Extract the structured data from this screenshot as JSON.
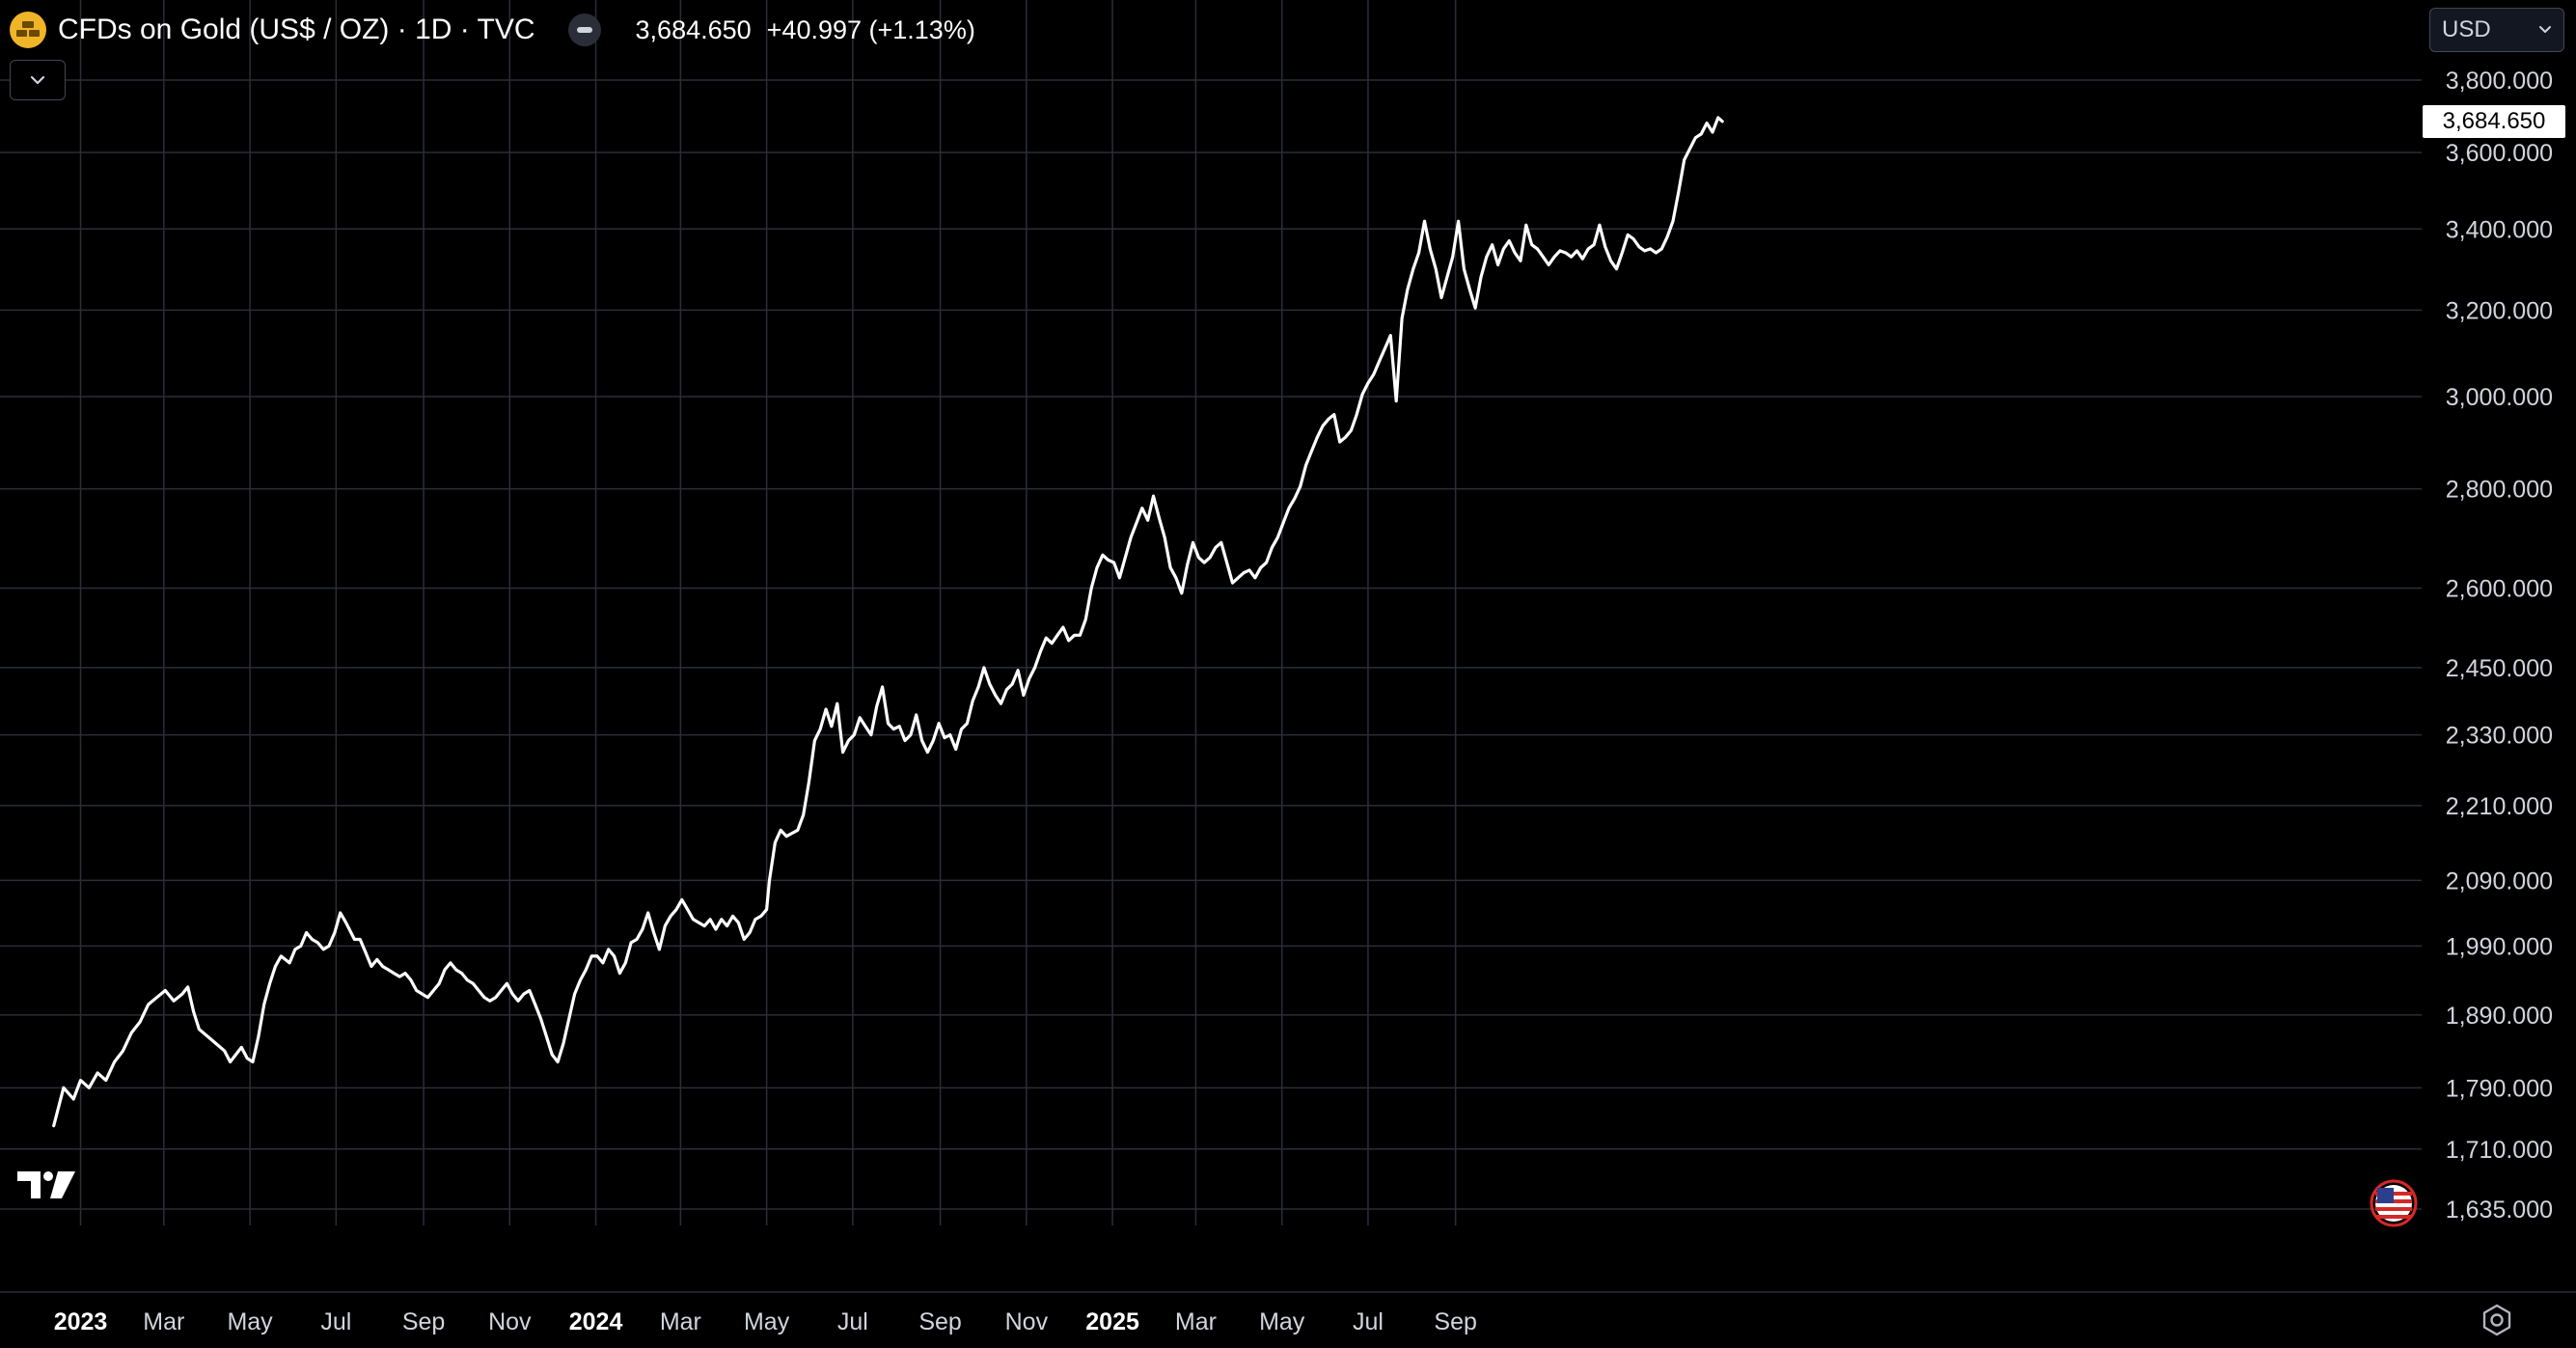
{
  "header": {
    "title": "CFDs on Gold (US$ / OZ) · 1D · TVC",
    "last_price": "3,684.650",
    "change": "+40.997 (+1.13%)",
    "logo_icon": "gold-bars-icon"
  },
  "currency": {
    "label": "USD"
  },
  "price_tag": "3,684.650",
  "colors": {
    "background": "#000000",
    "line": "#ffffff",
    "grid": "#2a2e39",
    "text": "#d1d4dc",
    "logo": "#f0b429"
  },
  "chart_data": {
    "type": "line",
    "series": [
      {
        "values": [
          [
            -19,
            1740
          ],
          [
            -12,
            1790
          ],
          [
            -5,
            1775
          ],
          [
            0,
            1800
          ],
          [
            6,
            1790
          ],
          [
            12,
            1810
          ],
          [
            18,
            1800
          ],
          [
            24,
            1825
          ],
          [
            30,
            1840
          ],
          [
            36,
            1865
          ],
          [
            42,
            1880
          ],
          [
            48,
            1905
          ],
          [
            54,
            1915
          ],
          [
            60,
            1925
          ],
          [
            66,
            1910
          ],
          [
            72,
            1920
          ],
          [
            76,
            1930
          ],
          [
            80,
            1895
          ],
          [
            84,
            1870
          ],
          [
            90,
            1860
          ],
          [
            96,
            1850
          ],
          [
            102,
            1840
          ],
          [
            106,
            1825
          ],
          [
            110,
            1835
          ],
          [
            114,
            1845
          ],
          [
            118,
            1830
          ],
          [
            122,
            1825
          ],
          [
            126,
            1860
          ],
          [
            130,
            1905
          ],
          [
            134,
            1935
          ],
          [
            138,
            1960
          ],
          [
            142,
            1975
          ],
          [
            148,
            1965
          ],
          [
            152,
            1985
          ],
          [
            156,
            1990
          ],
          [
            160,
            2010
          ],
          [
            164,
            2000
          ],
          [
            168,
            1995
          ],
          [
            172,
            1985
          ],
          [
            176,
            1990
          ],
          [
            180,
            2010
          ],
          [
            184,
            2040
          ],
          [
            188,
            2025
          ],
          [
            194,
            2000
          ],
          [
            198,
            2000
          ],
          [
            202,
            1980
          ],
          [
            206,
            1960
          ],
          [
            210,
            1970
          ],
          [
            214,
            1960
          ],
          [
            218,
            1955
          ],
          [
            222,
            1950
          ],
          [
            226,
            1945
          ],
          [
            230,
            1950
          ],
          [
            234,
            1940
          ],
          [
            238,
            1925
          ],
          [
            242,
            1920
          ],
          [
            246,
            1915
          ],
          [
            250,
            1925
          ],
          [
            254,
            1935
          ],
          [
            258,
            1955
          ],
          [
            262,
            1965
          ],
          [
            266,
            1955
          ],
          [
            270,
            1950
          ],
          [
            274,
            1940
          ],
          [
            278,
            1935
          ],
          [
            282,
            1925
          ],
          [
            286,
            1915
          ],
          [
            290,
            1910
          ],
          [
            294,
            1915
          ],
          [
            298,
            1925
          ],
          [
            302,
            1935
          ],
          [
            306,
            1920
          ],
          [
            310,
            1910
          ],
          [
            314,
            1920
          ],
          [
            318,
            1925
          ],
          [
            322,
            1905
          ],
          [
            326,
            1885
          ],
          [
            330,
            1860
          ],
          [
            334,
            1835
          ],
          [
            338,
            1825
          ],
          [
            342,
            1850
          ],
          [
            346,
            1885
          ],
          [
            350,
            1920
          ],
          [
            354,
            1940
          ],
          [
            358,
            1955
          ],
          [
            362,
            1975
          ],
          [
            366,
            1975
          ],
          [
            370,
            1965
          ],
          [
            374,
            1985
          ],
          [
            378,
            1975
          ],
          [
            382,
            1950
          ],
          [
            386,
            1965
          ],
          [
            390,
            1995
          ],
          [
            394,
            2000
          ],
          [
            398,
            2015
          ],
          [
            402,
            2040
          ],
          [
            406,
            2010
          ],
          [
            410,
            1985
          ],
          [
            414,
            2020
          ],
          [
            418,
            2035
          ],
          [
            422,
            2045
          ],
          [
            426,
            2060
          ],
          [
            430,
            2045
          ],
          [
            434,
            2030
          ],
          [
            438,
            2025
          ],
          [
            442,
            2020
          ],
          [
            446,
            2030
          ],
          [
            450,
            2015
          ],
          [
            454,
            2030
          ],
          [
            458,
            2020
          ],
          [
            462,
            2035
          ],
          [
            466,
            2025
          ],
          [
            470,
            2000
          ],
          [
            474,
            2010
          ],
          [
            478,
            2030
          ],
          [
            482,
            2035
          ],
          [
            486,
            2045
          ],
          [
            488,
            2090
          ],
          [
            492,
            2150
          ],
          [
            496,
            2170
          ],
          [
            500,
            2160
          ],
          [
            504,
            2165
          ],
          [
            508,
            2170
          ],
          [
            512,
            2195
          ],
          [
            516,
            2250
          ],
          [
            520,
            2320
          ],
          [
            524,
            2340
          ],
          [
            528,
            2375
          ],
          [
            532,
            2345
          ],
          [
            536,
            2385
          ],
          [
            540,
            2300
          ],
          [
            544,
            2320
          ],
          [
            548,
            2330
          ],
          [
            552,
            2360
          ],
          [
            556,
            2345
          ],
          [
            560,
            2330
          ],
          [
            564,
            2380
          ],
          [
            568,
            2415
          ],
          [
            572,
            2350
          ],
          [
            576,
            2340
          ],
          [
            580,
            2345
          ],
          [
            584,
            2320
          ],
          [
            588,
            2330
          ],
          [
            592,
            2365
          ],
          [
            596,
            2320
          ],
          [
            600,
            2300
          ],
          [
            604,
            2320
          ],
          [
            608,
            2350
          ],
          [
            612,
            2325
          ],
          [
            616,
            2330
          ],
          [
            620,
            2305
          ],
          [
            624,
            2340
          ],
          [
            628,
            2350
          ],
          [
            632,
            2390
          ],
          [
            636,
            2415
          ],
          [
            640,
            2450
          ],
          [
            644,
            2420
          ],
          [
            648,
            2400
          ],
          [
            652,
            2385
          ],
          [
            656,
            2410
          ],
          [
            660,
            2420
          ],
          [
            664,
            2445
          ],
          [
            668,
            2400
          ],
          [
            672,
            2430
          ],
          [
            676,
            2450
          ],
          [
            680,
            2480
          ],
          [
            684,
            2505
          ],
          [
            688,
            2495
          ],
          [
            692,
            2510
          ],
          [
            696,
            2525
          ],
          [
            700,
            2500
          ],
          [
            704,
            2510
          ],
          [
            708,
            2510
          ],
          [
            712,
            2540
          ],
          [
            716,
            2600
          ],
          [
            720,
            2640
          ],
          [
            724,
            2665
          ],
          [
            728,
            2655
          ],
          [
            732,
            2650
          ],
          [
            736,
            2620
          ],
          [
            740,
            2660
          ],
          [
            744,
            2700
          ],
          [
            748,
            2730
          ],
          [
            752,
            2760
          ],
          [
            756,
            2735
          ],
          [
            760,
            2785
          ],
          [
            764,
            2740
          ],
          [
            768,
            2700
          ],
          [
            772,
            2640
          ],
          [
            776,
            2620
          ],
          [
            780,
            2590
          ],
          [
            784,
            2645
          ],
          [
            788,
            2690
          ],
          [
            792,
            2660
          ],
          [
            796,
            2650
          ],
          [
            800,
            2660
          ],
          [
            804,
            2680
          ],
          [
            808,
            2690
          ],
          [
            812,
            2650
          ],
          [
            816,
            2610
          ],
          [
            820,
            2620
          ],
          [
            824,
            2630
          ],
          [
            828,
            2635
          ],
          [
            832,
            2620
          ],
          [
            836,
            2640
          ],
          [
            840,
            2650
          ],
          [
            844,
            2680
          ],
          [
            848,
            2700
          ],
          [
            852,
            2730
          ],
          [
            856,
            2760
          ],
          [
            860,
            2780
          ],
          [
            864,
            2805
          ],
          [
            868,
            2850
          ],
          [
            872,
            2880
          ],
          [
            876,
            2910
          ],
          [
            880,
            2935
          ],
          [
            884,
            2950
          ],
          [
            888,
            2960
          ],
          [
            892,
            2900
          ],
          [
            896,
            2910
          ],
          [
            900,
            2925
          ],
          [
            904,
            2960
          ],
          [
            908,
            3005
          ],
          [
            912,
            3030
          ],
          [
            916,
            3050
          ],
          [
            920,
            3080
          ],
          [
            924,
            3110
          ],
          [
            928,
            3140
          ],
          [
            932,
            2990
          ],
          [
            936,
            3180
          ],
          [
            940,
            3250
          ],
          [
            944,
            3300
          ],
          [
            948,
            3340
          ],
          [
            952,
            3420
          ],
          [
            956,
            3350
          ],
          [
            960,
            3300
          ],
          [
            964,
            3230
          ],
          [
            968,
            3280
          ],
          [
            972,
            3330
          ],
          [
            976,
            3420
          ],
          [
            980,
            3300
          ],
          [
            984,
            3250
          ],
          [
            988,
            3205
          ],
          [
            992,
            3280
          ],
          [
            996,
            3330
          ],
          [
            1000,
            3360
          ],
          [
            1004,
            3310
          ],
          [
            1008,
            3350
          ],
          [
            1012,
            3370
          ],
          [
            1016,
            3340
          ],
          [
            1020,
            3320
          ],
          [
            1024,
            3410
          ],
          [
            1028,
            3360
          ],
          [
            1032,
            3350
          ],
          [
            1036,
            3330
          ],
          [
            1040,
            3310
          ],
          [
            1044,
            3330
          ],
          [
            1048,
            3345
          ],
          [
            1052,
            3340
          ],
          [
            1056,
            3330
          ],
          [
            1060,
            3345
          ],
          [
            1064,
            3325
          ],
          [
            1068,
            3350
          ],
          [
            1072,
            3360
          ],
          [
            1076,
            3410
          ],
          [
            1080,
            3355
          ],
          [
            1084,
            3320
          ],
          [
            1088,
            3300
          ],
          [
            1092,
            3340
          ],
          [
            1096,
            3385
          ],
          [
            1100,
            3375
          ],
          [
            1104,
            3355
          ],
          [
            1108,
            3345
          ],
          [
            1112,
            3350
          ],
          [
            1116,
            3340
          ],
          [
            1120,
            3350
          ],
          [
            1124,
            3380
          ],
          [
            1128,
            3420
          ],
          [
            1132,
            3495
          ],
          [
            1136,
            3580
          ],
          [
            1140,
            3610
          ],
          [
            1144,
            3640
          ],
          [
            1148,
            3650
          ],
          [
            1152,
            3680
          ],
          [
            1156,
            3655
          ],
          [
            1160,
            3695
          ],
          [
            1163,
            3684.65
          ]
        ]
      }
    ],
    "y_ticks": [
      {
        "value": 3800,
        "label": "3,800.000"
      },
      {
        "value": 3600,
        "label": "3,600.000"
      },
      {
        "value": 3400,
        "label": "3,400.000"
      },
      {
        "value": 3200,
        "label": "3,200.000"
      },
      {
        "value": 3000,
        "label": "3,000.000"
      },
      {
        "value": 2800,
        "label": "2,800.000"
      },
      {
        "value": 2600,
        "label": "2,600.000"
      },
      {
        "value": 2450,
        "label": "2,450.000"
      },
      {
        "value": 2330,
        "label": "2,330.000"
      },
      {
        "value": 2210,
        "label": "2,210.000"
      },
      {
        "value": 2090,
        "label": "2,090.000"
      },
      {
        "value": 1990,
        "label": "1,990.000"
      },
      {
        "value": 1890,
        "label": "1,890.000"
      },
      {
        "value": 1790,
        "label": "1,790.000"
      },
      {
        "value": 1710,
        "label": "1,710.000"
      },
      {
        "value": 1635,
        "label": "1,635.000"
      }
    ],
    "x_ticks": [
      {
        "day": 0,
        "label": "2023",
        "bold": true
      },
      {
        "day": 59,
        "label": "Mar"
      },
      {
        "day": 120,
        "label": "May"
      },
      {
        "day": 181,
        "label": "Jul"
      },
      {
        "day": 243,
        "label": "Sep"
      },
      {
        "day": 304,
        "label": "Nov"
      },
      {
        "day": 365,
        "label": "2024",
        "bold": true
      },
      {
        "day": 425,
        "label": "Mar"
      },
      {
        "day": 486,
        "label": "May"
      },
      {
        "day": 547,
        "label": "Jul"
      },
      {
        "day": 609,
        "label": "Sep"
      },
      {
        "day": 670,
        "label": "Nov"
      },
      {
        "day": 731,
        "label": "2025",
        "bold": true
      },
      {
        "day": 790,
        "label": "Mar"
      },
      {
        "day": 851,
        "label": "May"
      },
      {
        "day": 912,
        "label": "Jul"
      },
      {
        "day": 974,
        "label": "Sep"
      }
    ],
    "y_scale": "log",
    "grid": true,
    "last_value": 3684.65
  }
}
